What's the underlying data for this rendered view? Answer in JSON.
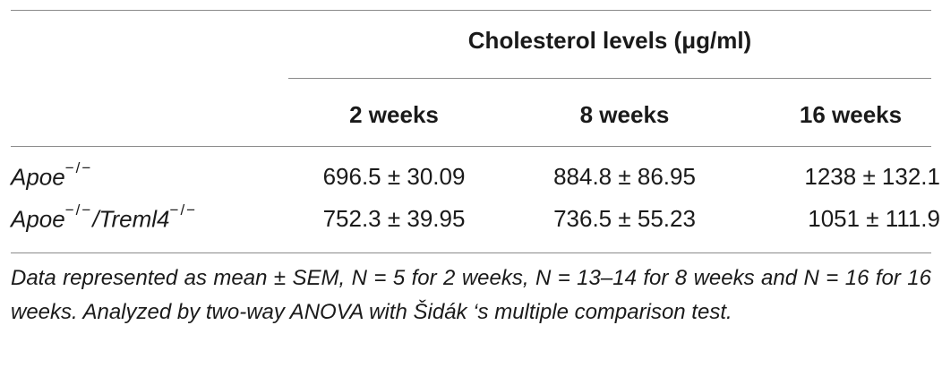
{
  "table": {
    "group_header": "Cholesterol levels (μg/ml)",
    "columns": [
      "2 weeks",
      "8 weeks",
      "16 weeks"
    ],
    "rows": [
      {
        "label": "Apoe",
        "label_sup": "−/−",
        "label_suffix": "",
        "label_suffix_sup": "",
        "values": [
          "696.5 ± 30.09",
          "884.8 ± 86.95",
          "1238 ± 132.1"
        ]
      },
      {
        "label": "Apoe",
        "label_sup": "−/−",
        "label_suffix": "/Treml4",
        "label_suffix_sup": "−/−",
        "values": [
          "752.3 ± 39.95",
          "736.5 ± 55.23",
          "1051 ± 111.9"
        ]
      }
    ]
  },
  "footnote": "Data represented as mean ± SEM, N = 5 for 2 weeks, N = 13–14 for 8 weeks and N = 16 for 16 weeks. Analyzed by two-way ANOVA with Šidák ‘s multiple comparison test."
}
